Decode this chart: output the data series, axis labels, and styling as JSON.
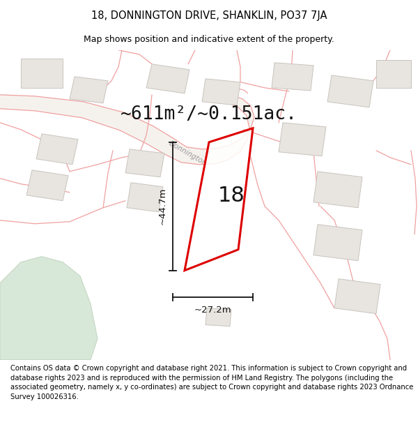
{
  "title": "18, DONNINGTON DRIVE, SHANKLIN, PO37 7JA",
  "subtitle": "Map shows position and indicative extent of the property.",
  "footer_text": "Contains OS data © Crown copyright and database right 2021. This information is subject to Crown copyright and database rights 2023 and is reproduced with the permission of HM Land Registry. The polygons (including the associated geometry, namely x, y co-ordinates) are subject to Crown copyright and database rights 2023 Ordnance Survey 100026316.",
  "area_label": "~611m²/~0.151ac.",
  "dim_vertical": "~44.7m",
  "dim_horizontal": "~27.2m",
  "property_label": "18",
  "road_label": "Donnington",
  "map_bg": "#ffffff",
  "plot_outline_color": "#dd0000",
  "building_fill": "#e8e5e0",
  "building_edge": "#c8c4be",
  "pink_line": "#f0a0a0",
  "dim_color": "#111111",
  "green_fill": "#d8e8d8",
  "green_edge": "#c0d4c0",
  "road_fill": "#f5f2ee",
  "footer_fontsize": 7.2,
  "title_fontsize": 10.5,
  "subtitle_fontsize": 9.0,
  "area_fontsize": 19,
  "property_label_fontsize": 22,
  "road_label_fontsize": 7.5,
  "dim_fontsize": 9.5
}
